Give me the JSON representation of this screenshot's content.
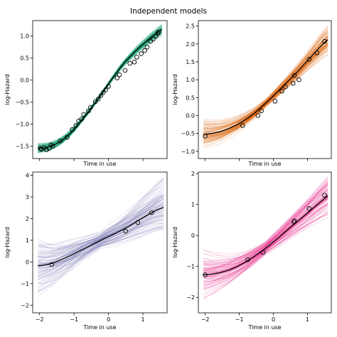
{
  "figure_title": "Independent models",
  "chart_data": [
    {
      "type": "line",
      "panel": "top-left",
      "color": "#1b9e77",
      "xlabel": "Time in use",
      "ylabel": "log-Hazard",
      "xlim": [
        -2.2,
        1.7
      ],
      "ylim": [
        -1.78,
        1.35
      ],
      "xticks": [
        -2,
        -1,
        0,
        1
      ],
      "yticks": [
        -1.5,
        -1.0,
        -0.5,
        0.0,
        0.5,
        1.0
      ],
      "ytick_labels": [
        "−1.5",
        "−1.0",
        "−0.5",
        "0.0",
        "0.5",
        "1.0"
      ],
      "show_xtick_labels": false,
      "band_halfwidth": 0.05,
      "mean_curve": {
        "x": [
          -2.05,
          -1.9,
          -1.75,
          -1.6,
          -1.45,
          -1.3,
          -1.15,
          -1.0,
          -0.85,
          -0.7,
          -0.55,
          -0.4,
          -0.25,
          -0.1,
          0.05,
          0.2,
          0.35,
          0.5,
          0.65,
          0.8,
          0.95,
          1.1,
          1.25,
          1.4,
          1.55
        ],
        "y": [
          -1.55,
          -1.54,
          -1.52,
          -1.48,
          -1.42,
          -1.34,
          -1.24,
          -1.12,
          -0.98,
          -0.84,
          -0.69,
          -0.53,
          -0.37,
          -0.2,
          -0.03,
          0.13,
          0.29,
          0.43,
          0.55,
          0.67,
          0.78,
          0.88,
          0.98,
          1.07,
          1.15
        ]
      },
      "points": {
        "x": [
          -1.98,
          -1.95,
          -1.87,
          -1.8,
          -1.72,
          -1.67,
          -1.62,
          -1.4,
          -1.2,
          -1.05,
          -0.95,
          -0.87,
          -0.78,
          -0.72,
          -0.58,
          -0.52,
          -0.38,
          -0.3,
          -0.22,
          -0.15,
          -0.08,
          0.0,
          0.25,
          0.32,
          0.48,
          0.62,
          0.75,
          0.82,
          0.95,
          1.05,
          1.12,
          1.22,
          1.3,
          1.38,
          1.43,
          1.45
        ],
        "y": [
          -1.55,
          -1.57,
          -1.53,
          -1.58,
          -1.55,
          -1.47,
          -1.5,
          -1.38,
          -1.3,
          -1.12,
          -1.03,
          -0.93,
          -0.88,
          -0.78,
          -0.7,
          -0.62,
          -0.49,
          -0.43,
          -0.35,
          -0.28,
          -0.22,
          -0.14,
          0.05,
          0.12,
          0.22,
          0.38,
          0.41,
          0.52,
          0.6,
          0.67,
          0.75,
          0.88,
          0.93,
          1.0,
          1.06,
          1.09
        ]
      }
    },
    {
      "type": "line",
      "panel": "top-right",
      "color": "#d95f02",
      "xlabel": "Time in use",
      "ylabel": "log-Hazard",
      "xlim": [
        -2.2,
        1.7
      ],
      "ylim": [
        -1.2,
        2.65
      ],
      "xticks": [
        -2,
        -1,
        0,
        1
      ],
      "yticks": [
        -1.0,
        -0.5,
        0.0,
        0.5,
        1.0,
        1.5,
        2.0,
        2.5
      ],
      "ytick_labels": [
        "−1.0",
        "−0.5",
        "0.0",
        "0.5",
        "1.0",
        "1.5",
        "2.0",
        "2.5"
      ],
      "show_xtick_labels": false,
      "band_halfwidth": 0.16,
      "mean_curve": {
        "x": [
          -2.05,
          -1.8,
          -1.55,
          -1.3,
          -1.05,
          -0.8,
          -0.55,
          -0.3,
          -0.05,
          0.2,
          0.45,
          0.7,
          0.95,
          1.2,
          1.45,
          1.6
        ],
        "y": [
          -0.52,
          -0.5,
          -0.45,
          -0.36,
          -0.25,
          -0.1,
          0.07,
          0.28,
          0.5,
          0.74,
          0.98,
          1.22,
          1.48,
          1.74,
          2.0,
          2.12
        ]
      },
      "points": {
        "x": [
          -2.0,
          -0.9,
          -0.45,
          -0.35,
          0.05,
          0.25,
          0.35,
          0.58,
          0.62,
          0.75,
          1.05,
          1.28,
          1.5
        ],
        "y": [
          -0.57,
          -0.28,
          0.0,
          0.13,
          0.4,
          0.68,
          0.8,
          0.9,
          1.12,
          1.0,
          1.57,
          1.75,
          2.07
        ]
      }
    },
    {
      "type": "line",
      "panel": "bottom-left",
      "color": "#7570b3",
      "xlabel": "Time in use",
      "ylabel": "log-Hazard",
      "xlim": [
        -2.2,
        1.7
      ],
      "ylim": [
        -2.35,
        4.15
      ],
      "xticks": [
        -2,
        -1,
        0,
        1
      ],
      "yticks": [
        -2,
        -1,
        0,
        1,
        2,
        3,
        4
      ],
      "xtick_labels": [
        "−2",
        "−1",
        "0",
        "1"
      ],
      "ytick_labels": [
        "−2",
        "−1",
        "0",
        "1",
        "2",
        "3",
        "4"
      ],
      "show_xtick_labels": true,
      "band_halfwidth": 0.55,
      "mean_curve": {
        "x": [
          -2.05,
          -1.85,
          -1.6,
          -1.35,
          -1.1,
          -0.85,
          -0.6,
          -0.35,
          -0.1,
          0.15,
          0.4,
          0.65,
          0.9,
          1.15,
          1.4,
          1.6
        ],
        "y": [
          -0.18,
          -0.15,
          -0.05,
          0.12,
          0.3,
          0.5,
          0.7,
          0.9,
          1.1,
          1.28,
          1.48,
          1.7,
          1.95,
          2.18,
          2.4,
          2.52
        ]
      },
      "points": {
        "x": [
          -1.65,
          0.5,
          0.85,
          1.25
        ],
        "y": [
          -0.12,
          1.42,
          1.82,
          2.28
        ]
      }
    },
    {
      "type": "line",
      "panel": "bottom-right",
      "color": "#e7298a",
      "xlabel": "Time in use",
      "ylabel": "log-Hazard",
      "xlim": [
        -2.2,
        1.7
      ],
      "ylim": [
        -2.5,
        2.05
      ],
      "xticks": [
        -2,
        -1,
        0,
        1
      ],
      "yticks": [
        -2,
        -1,
        0,
        1,
        2
      ],
      "xtick_labels": [
        "−2",
        "−1",
        "0",
        "1"
      ],
      "ytick_labels": [
        "−2",
        "−1",
        "0",
        "1",
        "2"
      ],
      "show_xtick_labels": true,
      "band_halfwidth": 0.28,
      "mean_curve": {
        "x": [
          -2.05,
          -1.8,
          -1.55,
          -1.3,
          -1.05,
          -0.8,
          -0.55,
          -0.3,
          -0.05,
          0.2,
          0.45,
          0.7,
          0.95,
          1.2,
          1.45,
          1.6
        ],
        "y": [
          -1.27,
          -1.25,
          -1.2,
          -1.12,
          -1.0,
          -0.85,
          -0.67,
          -0.47,
          -0.25,
          -0.02,
          0.22,
          0.45,
          0.68,
          0.92,
          1.15,
          1.28
        ]
      },
      "points": {
        "x": [
          -2.0,
          -0.75,
          -0.3,
          0.6,
          0.62,
          1.05,
          1.5
        ],
        "y": [
          -1.27,
          -0.78,
          -0.55,
          0.43,
          0.47,
          0.87,
          1.3
        ]
      }
    }
  ]
}
